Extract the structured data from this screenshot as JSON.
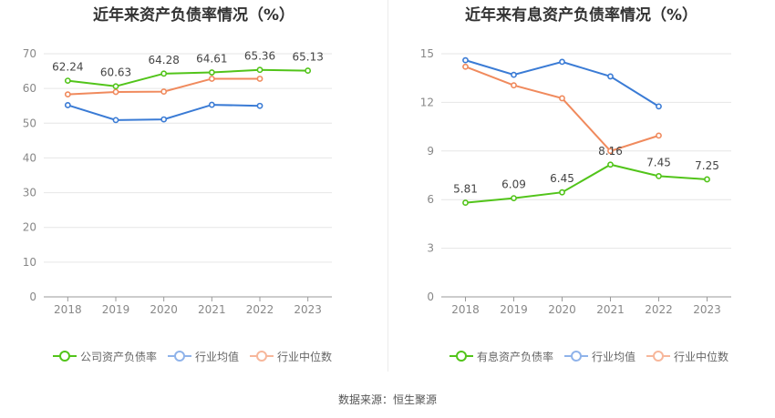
{
  "chart_data": [
    {
      "type": "line",
      "title": "近年来资产负债率情况（%）",
      "categories": [
        "2018",
        "2019",
        "2020",
        "2021",
        "2022",
        "2023"
      ],
      "ylim": [
        0,
        70
      ],
      "yticks": [
        0,
        10,
        20,
        30,
        40,
        50,
        60,
        70
      ],
      "grid": true,
      "legend_position": "bottom",
      "series": [
        {
          "name": "公司资产负债率",
          "color": "#52c41a",
          "values": [
            62.24,
            60.63,
            64.28,
            64.61,
            65.36,
            65.13
          ],
          "labels": [
            "62.24",
            "60.63",
            "64.28",
            "64.61",
            "65.36",
            "65.13"
          ]
        },
        {
          "name": "行业均值",
          "color": "#3a7bd5",
          "values": [
            55.2,
            50.9,
            51.1,
            55.3,
            55.0,
            null
          ]
        },
        {
          "name": "行业中位数",
          "color": "#f08a5d",
          "values": [
            58.3,
            59.0,
            59.1,
            62.8,
            62.8,
            null
          ]
        }
      ]
    },
    {
      "type": "line",
      "title": "近年来有息资产负债率情况（%）",
      "categories": [
        "2018",
        "2019",
        "2020",
        "2021",
        "2022",
        "2023"
      ],
      "ylim": [
        0,
        15
      ],
      "yticks": [
        0,
        3,
        6,
        9,
        12,
        15
      ],
      "grid": true,
      "legend_position": "bottom",
      "series": [
        {
          "name": "有息资产负债率",
          "color": "#52c41a",
          "values": [
            5.81,
            6.09,
            6.45,
            8.16,
            7.45,
            7.25
          ],
          "labels": [
            "5.81",
            "6.09",
            "6.45",
            "8.16",
            "7.45",
            "7.25"
          ]
        },
        {
          "name": "行业均值",
          "color": "#3a7bd5",
          "values": [
            14.6,
            13.7,
            14.5,
            13.6,
            11.75,
            null
          ]
        },
        {
          "name": "行业中位数",
          "color": "#f08a5d",
          "values": [
            14.2,
            13.05,
            12.25,
            9.0,
            9.95,
            null
          ]
        }
      ]
    }
  ],
  "legend_colors": {
    "primary": "#52c41a",
    "mean": "#8fb3ea",
    "median": "#f7b79b"
  },
  "source": "数据来源：恒生聚源"
}
